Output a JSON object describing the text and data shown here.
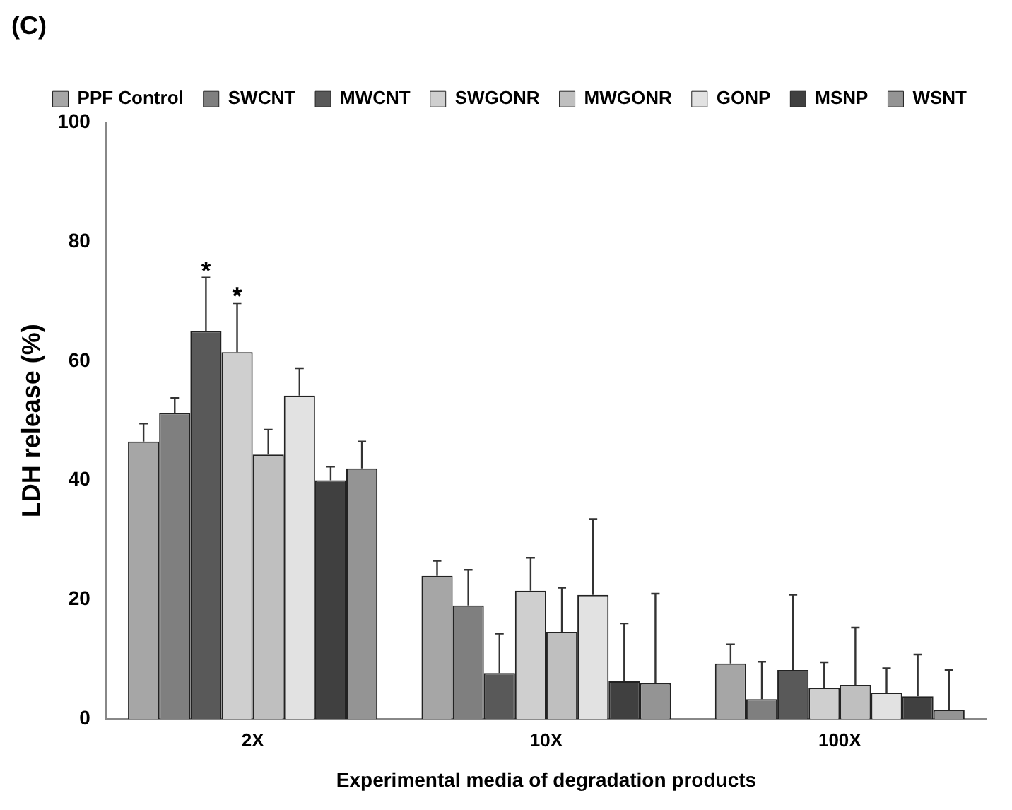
{
  "chart_data": {
    "type": "bar",
    "title": "(C)",
    "xlabel": "Experimental media of degradation products",
    "ylabel": "LDH release (%)",
    "categories": [
      "2X",
      "10X",
      "100X"
    ],
    "series": [
      {
        "name": "PPF Control",
        "color": "#a6a6a6",
        "values": [
          46.5,
          24,
          9.3
        ],
        "errors": [
          [
            46.5,
            49.5
          ],
          [
            24,
            26.5
          ],
          [
            9.3,
            12.5
          ]
        ]
      },
      {
        "name": "SWCNT",
        "color": "#7f7f7f",
        "values": [
          51.3,
          19,
          3.3
        ],
        "errors": [
          [
            51.3,
            53.8
          ],
          [
            19,
            25
          ],
          [
            3.3,
            9.6
          ]
        ]
      },
      {
        "name": "MWCNT",
        "color": "#595959",
        "values": [
          65,
          7.7,
          8.2
        ],
        "errors": [
          [
            65,
            74
          ],
          [
            7.7,
            14.3
          ],
          [
            8.2,
            20.8
          ]
        ]
      },
      {
        "name": "SWGONR",
        "color": "#cfcfcf",
        "values": [
          61.5,
          21.5,
          5.2
        ],
        "errors": [
          [
            61.5,
            69.7
          ],
          [
            21.5,
            27
          ],
          [
            5.2,
            9.5
          ]
        ]
      },
      {
        "name": "MWGONR",
        "color": "#bfbfbf",
        "values": [
          44.3,
          14.6,
          5.7
        ],
        "errors": [
          [
            44.3,
            48.5
          ],
          [
            14.6,
            22
          ],
          [
            5.7,
            15.3
          ]
        ]
      },
      {
        "name": "GONP",
        "color": "#e2e2e2",
        "values": [
          54.2,
          20.8,
          4.4
        ],
        "errors": [
          [
            54.2,
            58.8
          ],
          [
            20.8,
            33.5
          ],
          [
            4.4,
            8.5
          ]
        ]
      },
      {
        "name": "MSNP",
        "color": "#404040",
        "values": [
          40,
          6.3,
          3.8
        ],
        "errors": [
          [
            40,
            42.3
          ],
          [
            6.3,
            16
          ],
          [
            3.8,
            10.8
          ]
        ]
      },
      {
        "name": "WSNT",
        "color": "#949494",
        "values": [
          42,
          6,
          1.5
        ],
        "errors": [
          [
            42,
            46.5
          ],
          [
            6,
            21
          ],
          [
            1.5,
            8.2
          ]
        ]
      }
    ],
    "annotations": [
      "*",
      "*"
    ],
    "ylim": [
      0,
      100
    ],
    "yticks": [
      0,
      20,
      40,
      60,
      80,
      100
    ],
    "grid": false,
    "legend": "top right"
  }
}
